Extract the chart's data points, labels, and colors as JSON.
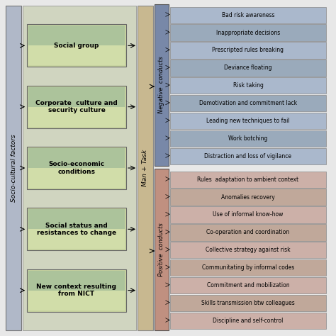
{
  "left_label": "Socio-cultural factors",
  "center_label": "Man + Task",
  "negative_label": "Negative  conducts",
  "positive_label": "Positive  conducts",
  "left_boxes": [
    "Social group",
    "Corporate  culture and\nsecurity culture",
    "Socio-economic\nconditions",
    "Social status and\nresistances to change",
    "New context resulting\nfrom NICT"
  ],
  "negative_items": [
    "Bad risk awareness",
    "Inappropriate decisions",
    "Prescripted rules breaking",
    "Deviance floating",
    "Risk taking",
    "Demotivation and commitment lack",
    "Leading new techniques to fail",
    "Work botching",
    "Distraction and loss of vigilance"
  ],
  "positive_items": [
    "Rules  adaptation to ambient context",
    "Anomalies recovery",
    "Use of informal know-how",
    "Co-operation and coordination",
    "Collective strategy against risk",
    "Communitating by informal codes",
    "Commitment and mobilization",
    "Skills transmission btw colleagues",
    "Discipline and self-control"
  ],
  "bg_color": "#e8e8e8",
  "left_strip_color1": "#b0bec5",
  "left_strip_color2": "#90a4ae",
  "left_box_color_top": "#d4ddb0",
  "left_box_color_bottom": "#8aab8a",
  "center_strip_color1": "#c8b89a",
  "center_strip_color2": "#b09878",
  "neg_strip_color1": "#8a9ab5",
  "neg_strip_color2": "#6a7a95",
  "neg_item_color1": "#b0bccc",
  "neg_item_color2": "#9aaabb",
  "pos_strip_color1": "#c8a898",
  "pos_strip_color2": "#b89888",
  "pos_item_color1": "#d4b8b0",
  "pos_item_color2": "#c4a8a0"
}
